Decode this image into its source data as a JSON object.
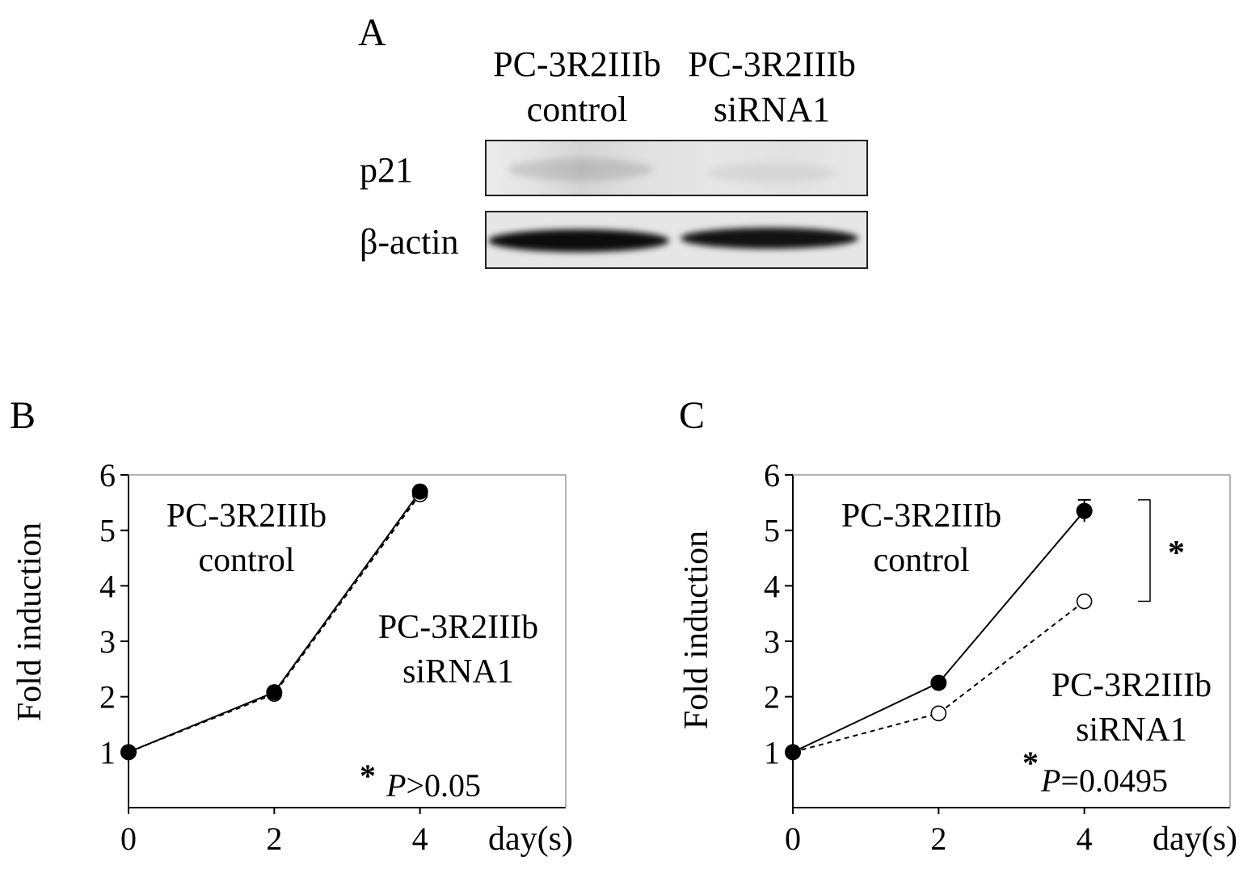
{
  "panels": {
    "a_letter": "A",
    "b_letter": "B",
    "c_letter": "C"
  },
  "blot": {
    "lanes": [
      {
        "line1": "PC-3R2IIIb",
        "line2": "control"
      },
      {
        "line1": "PC-3R2IIIb",
        "line2": "siRNA1"
      }
    ],
    "rows": [
      {
        "label": "p21",
        "band_intensity": [
          0.12,
          0.06
        ]
      },
      {
        "label": "β-actin",
        "band_intensity": [
          0.95,
          0.92
        ]
      }
    ]
  },
  "chart_data": [
    {
      "type": "line",
      "panel": "B",
      "x": [
        0,
        2,
        4
      ],
      "xlabel": "day(s)",
      "ylabel": "Fold induction",
      "xlim": [
        0,
        6
      ],
      "ylim": [
        0,
        6
      ],
      "yticks": [
        1,
        2,
        3,
        4,
        5,
        6
      ],
      "xticks": [
        0,
        2,
        4
      ],
      "grid": false,
      "series": [
        {
          "name": "PC-3R2IIIb control",
          "values": [
            1.0,
            2.08,
            5.7
          ],
          "marker": "filled-circle",
          "line": "solid"
        },
        {
          "name": "PC-3R2IIIb siRNA1",
          "values": [
            1.0,
            2.05,
            5.65
          ],
          "marker": "open-circle",
          "line": "dashed"
        }
      ],
      "annotations": {
        "label_control_1": "PC-3R2IIIb",
        "label_control_2": "control",
        "label_sirna_1": "PC-3R2IIIb",
        "label_sirna_2": "siRNA1",
        "star": "*",
        "p_symbol": "P",
        "p_rest": ">0.05"
      }
    },
    {
      "type": "line",
      "panel": "C",
      "x": [
        0,
        2,
        4
      ],
      "xlabel": "day(s)",
      "ylabel": "Fold induction",
      "xlim": [
        0,
        6
      ],
      "ylim": [
        0,
        6
      ],
      "yticks": [
        1,
        2,
        3,
        4,
        5,
        6
      ],
      "xticks": [
        0,
        2,
        4
      ],
      "grid": false,
      "series": [
        {
          "name": "PC-3R2IIIb control",
          "values": [
            1.0,
            2.25,
            5.35
          ],
          "error": [
            0,
            0,
            0.2
          ],
          "marker": "filled-circle",
          "line": "solid"
        },
        {
          "name": "PC-3R2IIIb siRNA1",
          "values": [
            1.0,
            1.7,
            3.72
          ],
          "marker": "open-circle",
          "line": "dashed"
        }
      ],
      "annotations": {
        "label_control_1": "PC-3R2IIIb",
        "label_control_2": "control",
        "label_sirna_1": "PC-3R2IIIb",
        "label_sirna_2": "siRNA1",
        "star": "*",
        "p_symbol": "P",
        "p_rest": "=0.0495",
        "bracket_star": "*"
      }
    }
  ]
}
